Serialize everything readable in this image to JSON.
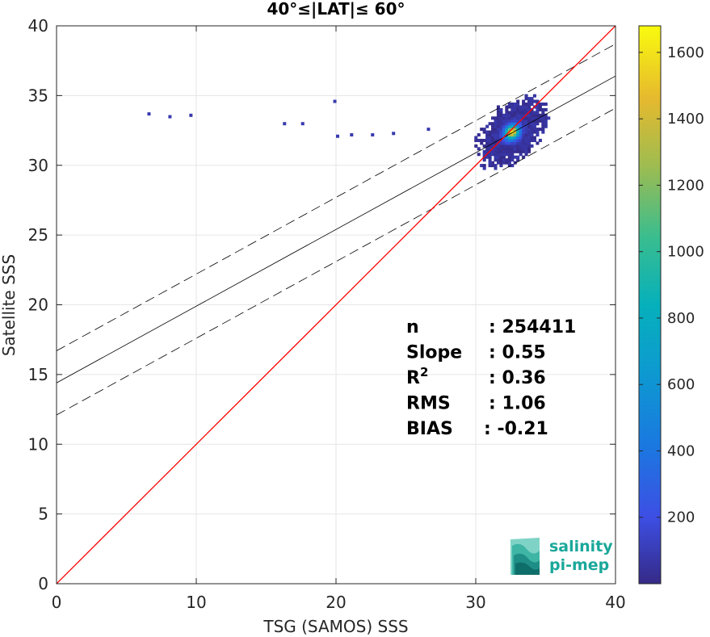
{
  "chart_data": {
    "type": "heatmap",
    "title": "40°≤|LAT|≤ 60°",
    "xlabel": "TSG (SAMOS) SSS",
    "ylabel": "Satellite SSS",
    "xlim": [
      0,
      40
    ],
    "ylim": [
      0,
      40
    ],
    "xticks": [
      0,
      10,
      20,
      30,
      40
    ],
    "yticks": [
      0,
      5,
      10,
      15,
      20,
      25,
      30,
      35,
      40
    ],
    "grid": true,
    "colorbar": {
      "min": 0,
      "max": 1680,
      "ticks": [
        200,
        400,
        600,
        800,
        1000,
        1200,
        1400,
        1600
      ],
      "colormap": "parula"
    },
    "density_peak": {
      "x": 32.5,
      "y": 32.3
    },
    "identity_line": {
      "slope": 1,
      "intercept": 0,
      "color": "#ff0000"
    },
    "regression_line": {
      "slope": 0.55,
      "intercept": 14.4,
      "color": "#000000"
    },
    "confidence_bands": [
      {
        "slope": 0.55,
        "intercept": 16.7,
        "style": "dashed"
      },
      {
        "slope": 0.55,
        "intercept": 12.1,
        "style": "dashed"
      }
    ],
    "stats": [
      {
        "label": "n",
        "value": ": 254411"
      },
      {
        "label": "Slope",
        "value": ": 0.55"
      },
      {
        "label": "R",
        "sup": "2",
        "value": ": 0.36"
      },
      {
        "label": "RMS",
        "value": ": 1.06"
      },
      {
        "label": "BIAS",
        "value": ": -0.21"
      }
    ]
  },
  "logo": {
    "line1": "salinity",
    "line2": "pi-mep"
  }
}
